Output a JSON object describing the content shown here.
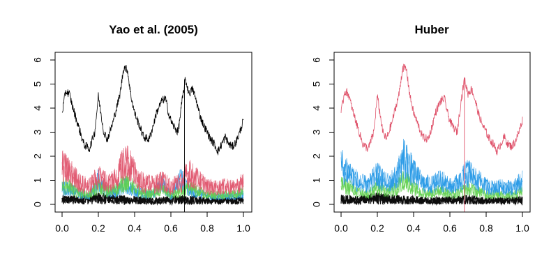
{
  "chart_data": [
    {
      "type": "line",
      "title": "Yao et al. (2005)",
      "xlabel": "",
      "ylabel": "",
      "xlim": [
        0,
        1
      ],
      "ylim": [
        0,
        6
      ],
      "xticks": [
        "0.0",
        "0.2",
        "0.4",
        "0.6",
        "0.8",
        "1.0"
      ],
      "yticks": [
        "0",
        "1",
        "2",
        "3",
        "4",
        "5",
        "6"
      ],
      "grid": false,
      "legend": "none",
      "series": [
        {
          "color": "#000000",
          "role": "top curve",
          "x": [
            0.0,
            0.02,
            0.04,
            0.06,
            0.08,
            0.1,
            0.12,
            0.15,
            0.18,
            0.2,
            0.21,
            0.23,
            0.25,
            0.28,
            0.3,
            0.32,
            0.34,
            0.36,
            0.38,
            0.4,
            0.42,
            0.45,
            0.48,
            0.5,
            0.52,
            0.55,
            0.57,
            0.59,
            0.61,
            0.64,
            0.66,
            0.68,
            0.7,
            0.72,
            0.74,
            0.76,
            0.78,
            0.8,
            0.82,
            0.84,
            0.86,
            0.88,
            0.9,
            0.92,
            0.94,
            0.96,
            0.98,
            1.0
          ],
          "values": [
            3.8,
            4.7,
            4.6,
            4.0,
            3.5,
            3.0,
            2.5,
            2.3,
            3.0,
            4.5,
            4.0,
            3.0,
            2.7,
            3.4,
            4.0,
            4.6,
            5.7,
            5.6,
            4.5,
            3.8,
            3.4,
            2.8,
            2.7,
            3.2,
            3.8,
            4.3,
            4.4,
            3.7,
            3.3,
            3.0,
            4.2,
            5.2,
            4.6,
            4.8,
            4.3,
            3.7,
            3.3,
            3.0,
            2.7,
            2.5,
            2.2,
            2.5,
            2.8,
            2.5,
            2.4,
            2.6,
            3.0,
            3.5
          ]
        },
        {
          "color": "#DF536B",
          "role": "band upper",
          "x": [
            0.0,
            0.05,
            0.1,
            0.15,
            0.2,
            0.25,
            0.3,
            0.35,
            0.4,
            0.45,
            0.5,
            0.55,
            0.6,
            0.65,
            0.7,
            0.75,
            0.8,
            0.85,
            0.9,
            0.95,
            1.0
          ],
          "values": [
            2.3,
            1.9,
            1.3,
            1.1,
            1.7,
            1.3,
            1.6,
            2.8,
            1.9,
            1.3,
            1.2,
            1.4,
            1.1,
            1.3,
            1.9,
            1.5,
            1.1,
            1.0,
            1.1,
            1.0,
            1.4
          ]
        },
        {
          "color": "#61D04F",
          "role": "band upper",
          "x": [
            0.0,
            0.05,
            0.1,
            0.15,
            0.2,
            0.25,
            0.3,
            0.35,
            0.4,
            0.45,
            0.5,
            0.55,
            0.6,
            0.65,
            0.7,
            0.75,
            0.8,
            0.85,
            0.9,
            0.95,
            1.0
          ],
          "values": [
            1.2,
            1.0,
            0.7,
            0.6,
            1.1,
            0.8,
            0.9,
            1.4,
            1.0,
            0.7,
            0.7,
            0.9,
            0.6,
            0.7,
            1.0,
            0.8,
            0.6,
            0.6,
            0.6,
            0.6,
            0.8
          ]
        },
        {
          "color": "#2297E6",
          "role": "band upper",
          "x": [
            0.0,
            0.05,
            0.1,
            0.15,
            0.2,
            0.25,
            0.3,
            0.35,
            0.4,
            0.45,
            0.5,
            0.55,
            0.6,
            0.65,
            0.7,
            0.75,
            0.8,
            0.85,
            0.9,
            0.95,
            1.0
          ],
          "values": [
            1.0,
            0.9,
            0.6,
            0.5,
            1.5,
            0.7,
            0.8,
            1.2,
            0.9,
            0.6,
            0.6,
            1.3,
            0.5,
            1.6,
            0.9,
            0.7,
            0.5,
            0.5,
            0.5,
            0.5,
            0.7
          ]
        },
        {
          "color": "#000000",
          "role": "bottom band",
          "x": [
            0.0,
            0.1,
            0.2,
            0.3,
            0.4,
            0.5,
            0.6,
            0.7,
            0.8,
            0.9,
            1.0
          ],
          "values": [
            0.4,
            0.35,
            0.5,
            0.4,
            0.35,
            0.3,
            0.35,
            0.4,
            0.3,
            0.3,
            0.35
          ]
        }
      ]
    },
    {
      "type": "line",
      "title": "Huber",
      "xlabel": "",
      "ylabel": "",
      "xlim": [
        0,
        1
      ],
      "ylim": [
        0,
        6
      ],
      "xticks": [
        "0.0",
        "0.2",
        "0.4",
        "0.6",
        "0.8",
        "1.0"
      ],
      "yticks": [
        "0",
        "1",
        "2",
        "3",
        "4",
        "5",
        "6"
      ],
      "grid": false,
      "legend": "none",
      "series": [
        {
          "color": "#DF536B",
          "role": "top curve",
          "x": [
            0.0,
            0.02,
            0.04,
            0.06,
            0.08,
            0.1,
            0.12,
            0.15,
            0.18,
            0.2,
            0.21,
            0.23,
            0.25,
            0.28,
            0.3,
            0.32,
            0.34,
            0.36,
            0.38,
            0.4,
            0.42,
            0.45,
            0.48,
            0.5,
            0.52,
            0.55,
            0.57,
            0.59,
            0.61,
            0.64,
            0.66,
            0.68,
            0.7,
            0.72,
            0.74,
            0.76,
            0.78,
            0.8,
            0.82,
            0.84,
            0.86,
            0.88,
            0.9,
            0.92,
            0.94,
            0.96,
            0.98,
            1.0
          ],
          "values": [
            3.8,
            4.7,
            4.6,
            4.0,
            3.5,
            3.0,
            2.5,
            2.3,
            3.0,
            4.5,
            4.0,
            3.0,
            2.7,
            3.4,
            4.0,
            4.6,
            5.7,
            5.6,
            4.5,
            3.8,
            3.4,
            2.8,
            2.7,
            3.2,
            3.8,
            4.3,
            4.4,
            3.7,
            3.3,
            3.0,
            4.2,
            5.2,
            4.6,
            4.8,
            4.3,
            3.7,
            3.3,
            3.0,
            2.7,
            2.5,
            2.2,
            2.5,
            2.8,
            2.5,
            2.4,
            2.6,
            3.0,
            3.5
          ]
        },
        {
          "color": "#2297E6",
          "role": "band upper",
          "x": [
            0.0,
            0.05,
            0.1,
            0.15,
            0.2,
            0.25,
            0.3,
            0.35,
            0.4,
            0.45,
            0.5,
            0.55,
            0.6,
            0.65,
            0.7,
            0.75,
            0.8,
            0.85,
            0.9,
            0.95,
            1.0
          ],
          "values": [
            2.4,
            1.9,
            1.3,
            1.2,
            1.8,
            1.3,
            1.6,
            2.9,
            1.9,
            1.3,
            1.2,
            1.5,
            1.1,
            1.3,
            2.0,
            1.5,
            1.1,
            1.0,
            1.1,
            1.0,
            1.5
          ]
        },
        {
          "color": "#61D04F",
          "role": "band upper",
          "x": [
            0.0,
            0.05,
            0.1,
            0.15,
            0.2,
            0.25,
            0.3,
            0.35,
            0.4,
            0.45,
            0.5,
            0.55,
            0.6,
            0.65,
            0.7,
            0.75,
            0.8,
            0.85,
            0.9,
            0.95,
            1.0
          ],
          "values": [
            1.2,
            1.0,
            0.7,
            0.6,
            1.1,
            0.8,
            0.9,
            1.6,
            1.0,
            0.7,
            0.7,
            0.9,
            0.6,
            0.7,
            1.0,
            0.8,
            0.6,
            0.6,
            0.6,
            0.6,
            0.8
          ]
        },
        {
          "color": "#000000",
          "role": "bottom band",
          "x": [
            0.0,
            0.1,
            0.2,
            0.3,
            0.4,
            0.5,
            0.6,
            0.7,
            0.8,
            0.9,
            1.0
          ],
          "values": [
            0.4,
            0.35,
            0.5,
            0.4,
            0.35,
            0.3,
            0.35,
            0.4,
            0.3,
            0.3,
            0.35
          ]
        }
      ]
    }
  ]
}
